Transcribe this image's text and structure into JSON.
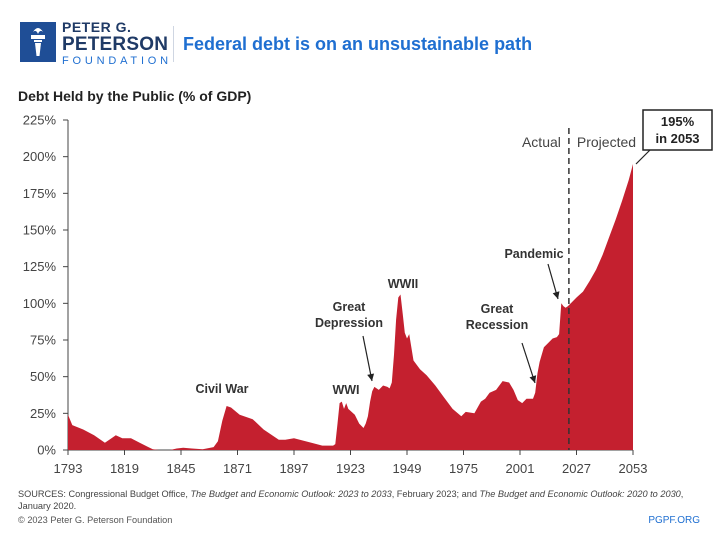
{
  "header": {
    "logo_line1": "PETER G.",
    "logo_line2": "PETERSON",
    "logo_line3": "FOUNDATION",
    "headline": "Federal debt is on an unsustainable path"
  },
  "colors": {
    "brand_navy": "#1f3a66",
    "brand_blue": "#1f6fd1",
    "area_fill": "#c4202f",
    "logo_box": "#1f4e96"
  },
  "chart_data": {
    "type": "area",
    "title": "Debt Held by the Public (% of GDP)",
    "xlabel": "",
    "ylabel": "",
    "ylim": [
      0,
      225
    ],
    "xlim": [
      1793,
      2053
    ],
    "yticks": [
      0,
      25,
      50,
      75,
      100,
      125,
      150,
      175,
      200,
      225
    ],
    "ytick_labels": [
      "0%",
      "25%",
      "50%",
      "75%",
      "100%",
      "125%",
      "150%",
      "175%",
      "200%",
      "225%"
    ],
    "xticks": [
      1793,
      1819,
      1845,
      1871,
      1897,
      1923,
      1949,
      1975,
      2001,
      2027,
      2053
    ],
    "grid": false,
    "divider_year": 2023.5,
    "region_labels": {
      "actual": "Actual",
      "projected": "Projected"
    },
    "callout": {
      "line1": "195%",
      "line2": "in 2053",
      "year": 2053,
      "value": 195
    },
    "annotations": [
      {
        "label": "Civil War",
        "year": 1866
      },
      {
        "label": "WWI",
        "year": 1918
      },
      {
        "label": "Great\nDepression",
        "year": 1933
      },
      {
        "label": "WWII",
        "year": 1946
      },
      {
        "label": "Great\nRecession",
        "year": 2009
      },
      {
        "label": "Pandemic",
        "year": 2020
      }
    ],
    "series": [
      {
        "values": [
          [
            1793,
            24
          ],
          [
            1795,
            17
          ],
          [
            1800,
            14
          ],
          [
            1805,
            10
          ],
          [
            1810,
            5
          ],
          [
            1813,
            8
          ],
          [
            1815,
            10
          ],
          [
            1818,
            8
          ],
          [
            1822,
            8
          ],
          [
            1826,
            5
          ],
          [
            1830,
            2
          ],
          [
            1832,
            0.5
          ],
          [
            1835,
            0
          ],
          [
            1840,
            0
          ],
          [
            1843,
            1
          ],
          [
            1846,
            1.5
          ],
          [
            1850,
            1
          ],
          [
            1855,
            0.5
          ],
          [
            1860,
            2
          ],
          [
            1862,
            6
          ],
          [
            1864,
            20
          ],
          [
            1866,
            30
          ],
          [
            1868,
            29
          ],
          [
            1872,
            24
          ],
          [
            1878,
            21
          ],
          [
            1883,
            14
          ],
          [
            1890,
            7
          ],
          [
            1893,
            7
          ],
          [
            1897,
            8
          ],
          [
            1905,
            5
          ],
          [
            1910,
            3
          ],
          [
            1915,
            3
          ],
          [
            1916,
            4
          ],
          [
            1917,
            18
          ],
          [
            1918,
            32
          ],
          [
            1919,
            33
          ],
          [
            1920,
            28
          ],
          [
            1921,
            32
          ],
          [
            1922,
            28
          ],
          [
            1925,
            24
          ],
          [
            1927,
            18
          ],
          [
            1929,
            15
          ],
          [
            1930,
            18
          ],
          [
            1931,
            23
          ],
          [
            1932,
            33
          ],
          [
            1933,
            40
          ],
          [
            1934,
            43
          ],
          [
            1936,
            41
          ],
          [
            1938,
            44
          ],
          [
            1940,
            43
          ],
          [
            1941,
            42
          ],
          [
            1942,
            46
          ],
          [
            1943,
            65
          ],
          [
            1944,
            89
          ],
          [
            1945,
            104
          ],
          [
            1946,
            106
          ],
          [
            1947,
            93
          ],
          [
            1948,
            80
          ],
          [
            1949,
            76
          ],
          [
            1950,
            79
          ],
          [
            1952,
            61
          ],
          [
            1955,
            55
          ],
          [
            1958,
            51
          ],
          [
            1962,
            44
          ],
          [
            1966,
            36
          ],
          [
            1970,
            28
          ],
          [
            1974,
            23
          ],
          [
            1976,
            26
          ],
          [
            1980,
            25
          ],
          [
            1983,
            33
          ],
          [
            1985,
            35
          ],
          [
            1987,
            39
          ],
          [
            1990,
            41
          ],
          [
            1993,
            47
          ],
          [
            1996,
            46
          ],
          [
            1998,
            41
          ],
          [
            2000,
            34
          ],
          [
            2002,
            32
          ],
          [
            2004,
            35
          ],
          [
            2006,
            35
          ],
          [
            2007,
            35
          ],
          [
            2008,
            39
          ],
          [
            2009,
            52
          ],
          [
            2010,
            60
          ],
          [
            2012,
            70
          ],
          [
            2014,
            73
          ],
          [
            2016,
            76
          ],
          [
            2018,
            77
          ],
          [
            2019,
            79
          ],
          [
            2020,
            100
          ],
          [
            2021,
            98
          ],
          [
            2022,
            97
          ],
          [
            2023,
            98
          ],
          [
            2025,
            101
          ],
          [
            2027,
            104
          ],
          [
            2030,
            108
          ],
          [
            2033,
            115
          ],
          [
            2036,
            123
          ],
          [
            2039,
            133
          ],
          [
            2042,
            145
          ],
          [
            2045,
            157
          ],
          [
            2048,
            170
          ],
          [
            2051,
            184
          ],
          [
            2053,
            195
          ]
        ]
      }
    ]
  },
  "footer": {
    "sources_prefix": "SOURCES: Congressional Budget Office, ",
    "sources_title1": "The Budget and Economic Outlook: 2023 to 2033",
    "sources_mid": ", February 2023; and ",
    "sources_title2": "The Budget and Economic Outlook: 2020 to 2030",
    "sources_suffix": ", January 2020.",
    "copyright": "© 2023 Peter G. Peterson Foundation",
    "url": "PGPF.ORG"
  }
}
